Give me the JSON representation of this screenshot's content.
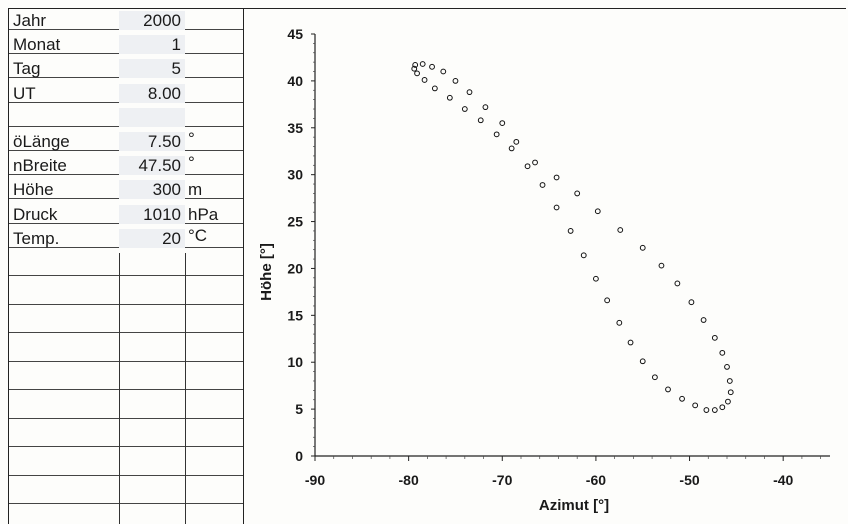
{
  "sheet": {
    "rows": [
      {
        "label": "Jahr",
        "value": "2000",
        "unit": ""
      },
      {
        "label": "Monat",
        "value": "1",
        "unit": ""
      },
      {
        "label": "Tag",
        "value": "5",
        "unit": ""
      },
      {
        "label": "UT",
        "value": "8.00",
        "unit": ""
      },
      {
        "label": "",
        "value": "",
        "unit": ""
      },
      {
        "label": "öLänge",
        "value": "7.50",
        "unit": "°"
      },
      {
        "label": "nBreite",
        "value": "47.50",
        "unit": "°"
      },
      {
        "label": "Höhe",
        "value": "300",
        "unit": "m"
      },
      {
        "label": "Druck",
        "value": "1010",
        "unit": "hPa"
      },
      {
        "label": "Temp.",
        "value": "20",
        "unit": "°C"
      }
    ]
  },
  "chart_data": {
    "type": "scatter",
    "title": "",
    "xlabel": "Azimut [°]",
    "ylabel": "Höhe [°]",
    "xlim": [
      -90,
      -35
    ],
    "ylim": [
      0,
      45
    ],
    "xticks": [
      -90,
      -80,
      -70,
      -60,
      -50,
      -40
    ],
    "yticks": [
      0,
      5,
      10,
      15,
      20,
      25,
      30,
      35,
      40,
      45
    ],
    "grid": false,
    "marker": "open-circle",
    "color": "#111111",
    "series": [
      {
        "points": [
          [
            -79.3,
            41.7
          ],
          [
            -78.5,
            41.8
          ],
          [
            -77.5,
            41.5
          ],
          [
            -76.3,
            41.0
          ],
          [
            -75.0,
            40.0
          ],
          [
            -73.5,
            38.8
          ],
          [
            -71.8,
            37.2
          ],
          [
            -70.0,
            35.5
          ],
          [
            -68.5,
            33.5
          ],
          [
            -66.5,
            31.3
          ],
          [
            -64.2,
            29.7
          ],
          [
            -62.0,
            28.0
          ],
          [
            -59.8,
            26.1
          ],
          [
            -57.4,
            24.1
          ],
          [
            -55.0,
            22.2
          ],
          [
            -53.0,
            20.3
          ],
          [
            -51.3,
            18.4
          ],
          [
            -49.8,
            16.4
          ],
          [
            -48.5,
            14.5
          ],
          [
            -47.3,
            12.6
          ],
          [
            -46.5,
            11.0
          ],
          [
            -46.0,
            9.5
          ],
          [
            -45.7,
            8.0
          ],
          [
            -45.6,
            6.8
          ],
          [
            -45.9,
            5.8
          ],
          [
            -46.5,
            5.2
          ],
          [
            -47.3,
            4.9
          ],
          [
            -48.2,
            4.9
          ],
          [
            -49.4,
            5.4
          ],
          [
            -50.8,
            6.1
          ],
          [
            -52.3,
            7.1
          ],
          [
            -53.7,
            8.4
          ],
          [
            -55.0,
            10.1
          ],
          [
            -56.3,
            12.1
          ],
          [
            -57.5,
            14.2
          ],
          [
            -58.8,
            16.6
          ],
          [
            -60.0,
            18.9
          ],
          [
            -61.3,
            21.4
          ],
          [
            -62.7,
            24.0
          ],
          [
            -64.2,
            26.5
          ],
          [
            -65.7,
            28.9
          ],
          [
            -67.3,
            30.9
          ],
          [
            -69.0,
            32.8
          ],
          [
            -70.6,
            34.3
          ],
          [
            -72.3,
            35.8
          ],
          [
            -74.0,
            37.0
          ],
          [
            -75.6,
            38.2
          ],
          [
            -77.2,
            39.2
          ],
          [
            -78.3,
            40.1
          ],
          [
            -79.1,
            40.8
          ],
          [
            -79.4,
            41.3
          ]
        ]
      }
    ]
  }
}
